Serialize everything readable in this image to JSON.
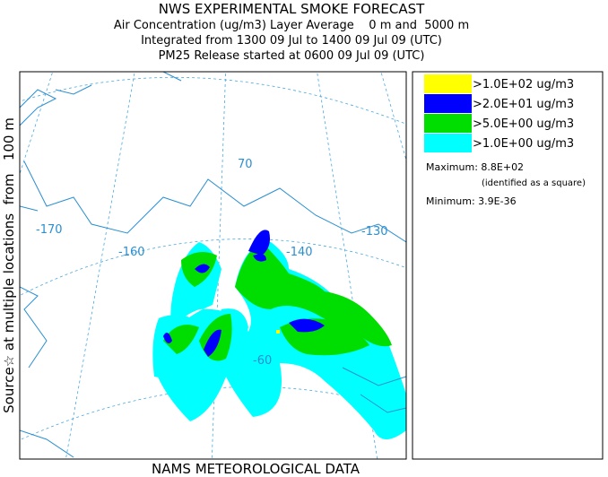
{
  "header": {
    "lines": [
      "NWS EXPERIMENTAL SMOKE FORECAST",
      "Air Concentration (ug/m3) Layer Average    0 m and  5000 m",
      "Integrated from 1300 09 Jul to 1400 09 Jul 09 (UTC)",
      "PM25 Release started at 0600 09 Jul 09 (UTC)"
    ]
  },
  "side_label": "Source☆ at multiple locations  from   100 m",
  "footer": "NAMS METEOROLOGICAL DATA",
  "map_labels": [
    "-170",
    "-160",
    "-140",
    "-130",
    "70",
    "-60"
  ],
  "legend": {
    "entries": [
      {
        "label": ">1.0E+02 ug/m3",
        "color": "#ffff00"
      },
      {
        "label": ">2.0E+01 ug/m3",
        "color": "#0000ff"
      },
      {
        "label": ">5.0E+00 ug/m3",
        "color": "#00dd00"
      },
      {
        "label": ">1.0E+00 ug/m3",
        "color": "#00ffff"
      }
    ],
    "maximum": "Maximum: 8.8E+02",
    "maximum_note": "(identified as a square)",
    "minimum": "Minimum: 3.9E-36"
  }
}
